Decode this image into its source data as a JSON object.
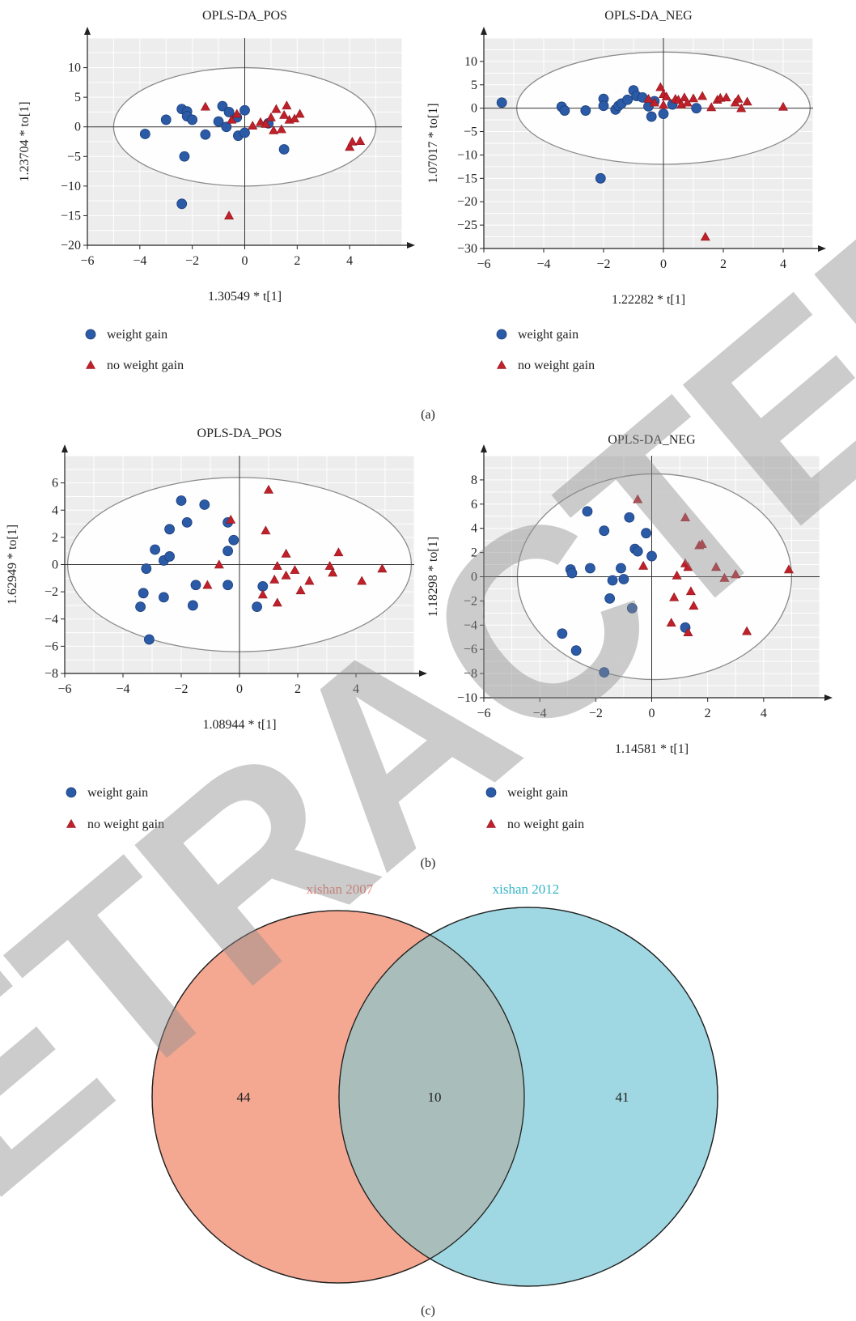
{
  "panel_labels": {
    "a": "(a)",
    "b": "(b)",
    "c": "(c)"
  },
  "watermark": "RETRACTED",
  "colors": {
    "weight_gain": "#2B5AA6",
    "no_weight_gain": "#C0202A",
    "plot_bg": "#ededed",
    "venn_left": "#F4A892",
    "venn_right": "#9FD8E2",
    "venn_overlap": "#A9BDBA",
    "venn_left_label": "#EE7A6C",
    "venn_right_label": "#33B5C6"
  },
  "chart_data": [
    {
      "type": "scatter",
      "title": "OPLS-DA_POS",
      "xlabel": "1.30549 * t[1]",
      "ylabel": "1.23704 * to[1]",
      "xlim": [
        -6,
        6
      ],
      "ylim": [
        -20,
        15
      ],
      "xticks": [
        -6,
        -4,
        -2,
        0,
        2,
        4
      ],
      "yticks": [
        -20,
        -15,
        -10,
        -5,
        0,
        5,
        10
      ],
      "grid": true,
      "legend": "below",
      "ellipse": {
        "cx": 0,
        "cy": 0,
        "rx": 5,
        "ry": 10
      },
      "series": [
        {
          "name": "weight gain",
          "marker": "circle",
          "points": [
            [
              -3.8,
              -1.2
            ],
            [
              -3,
              1.2
            ],
            [
              -2.4,
              3
            ],
            [
              -2.2,
              2.6
            ],
            [
              -2.2,
              1.8
            ],
            [
              -2,
              1.2
            ],
            [
              -2.3,
              -5
            ],
            [
              -2.4,
              -13
            ],
            [
              -1.5,
              -1.3
            ],
            [
              -1,
              0.9
            ],
            [
              -0.85,
              3.5
            ],
            [
              -0.7,
              0
            ],
            [
              -0.6,
              2.5
            ],
            [
              -0.3,
              1.6
            ],
            [
              -0.25,
              -1.5
            ],
            [
              0,
              -1
            ],
            [
              0,
              2.8
            ],
            [
              0.9,
              0.6
            ],
            [
              1.5,
              -3.8
            ]
          ]
        },
        {
          "name": "no weight gain",
          "marker": "triangle",
          "points": [
            [
              -1.5,
              3.4
            ],
            [
              -0.6,
              -15
            ],
            [
              -0.5,
              1.2
            ],
            [
              -0.3,
              2.2
            ],
            [
              0.3,
              0.2
            ],
            [
              0.6,
              0.8
            ],
            [
              0.8,
              0.5
            ],
            [
              1,
              1.6
            ],
            [
              1.1,
              -0.6
            ],
            [
              1.2,
              3
            ],
            [
              1.4,
              -0.4
            ],
            [
              1.5,
              2
            ],
            [
              1.6,
              3.6
            ],
            [
              1.7,
              1.2
            ],
            [
              1.9,
              1.4
            ],
            [
              2.1,
              2.2
            ],
            [
              4,
              -3.4
            ],
            [
              4.1,
              -2.5
            ],
            [
              4.4,
              -2.4
            ]
          ]
        }
      ]
    },
    {
      "type": "scatter",
      "title": "OPLS-DA_NEG",
      "xlabel": "1.22282 * t[1]",
      "ylabel": "1.07017 * to[1]",
      "xlim": [
        -6,
        5
      ],
      "ylim": [
        -30,
        15
      ],
      "xticks": [
        -6,
        -4,
        -2,
        0,
        2,
        4
      ],
      "yticks": [
        -30,
        -25,
        -20,
        -15,
        -10,
        -5,
        0,
        5,
        10
      ],
      "grid": true,
      "legend": "below",
      "ellipse": {
        "cx": 0,
        "cy": 0,
        "rx": 4.9,
        "ry": 12
      },
      "series": [
        {
          "name": "weight gain",
          "marker": "circle",
          "points": [
            [
              -5.4,
              1.2
            ],
            [
              -3.4,
              0.3
            ],
            [
              -3.3,
              -0.5
            ],
            [
              -2.6,
              -0.5
            ],
            [
              -2.1,
              -15
            ],
            [
              -2,
              2
            ],
            [
              -2,
              0.5
            ],
            [
              -1.6,
              -0.3
            ],
            [
              -1.5,
              0.5
            ],
            [
              -1.4,
              1
            ],
            [
              -1.2,
              1.8
            ],
            [
              -1,
              3.8
            ],
            [
              -0.9,
              2.6
            ],
            [
              -0.7,
              2.3
            ],
            [
              -0.5,
              0.4
            ],
            [
              -0.4,
              -1.8
            ],
            [
              -0.3,
              1.5
            ],
            [
              0,
              -1.2
            ],
            [
              0.3,
              0.8
            ],
            [
              1.1,
              0
            ]
          ]
        },
        {
          "name": "no weight gain",
          "marker": "triangle",
          "points": [
            [
              -0.5,
              2
            ],
            [
              -0.3,
              1.2
            ],
            [
              -0.1,
              4.5
            ],
            [
              0,
              3
            ],
            [
              0,
              0.7
            ],
            [
              0.1,
              2.5
            ],
            [
              0.4,
              2
            ],
            [
              0.5,
              1.8
            ],
            [
              0.6,
              0.8
            ],
            [
              0.7,
              2.3
            ],
            [
              0.8,
              1.2
            ],
            [
              1,
              2.1
            ],
            [
              1.3,
              2.6
            ],
            [
              1.4,
              -27.5
            ],
            [
              1.6,
              0.2
            ],
            [
              1.8,
              1.8
            ],
            [
              1.9,
              2.2
            ],
            [
              2.1,
              2.3
            ],
            [
              2.4,
              1.2
            ],
            [
              2.5,
              2
            ],
            [
              2.6,
              0
            ],
            [
              2.8,
              1.4
            ],
            [
              4,
              0.3
            ]
          ]
        }
      ]
    },
    {
      "type": "scatter",
      "title": "OPLS-DA_POS",
      "xlabel": "1.08944 * t[1]",
      "ylabel": "1.62949 * to[1]",
      "xlim": [
        -6,
        6
      ],
      "ylim": [
        -8,
        8
      ],
      "xticks": [
        -6,
        -4,
        -2,
        0,
        2,
        4
      ],
      "yticks": [
        -8,
        -6,
        -4,
        -2,
        0,
        2,
        4,
        6
      ],
      "grid": true,
      "legend": "below",
      "ellipse": {
        "cx": 0,
        "cy": 0,
        "rx": 5.9,
        "ry": 6.4
      },
      "series": [
        {
          "name": "weight gain",
          "marker": "circle",
          "points": [
            [
              -3.4,
              -3.1
            ],
            [
              -3.3,
              -2.1
            ],
            [
              -3.2,
              -0.3
            ],
            [
              -3.1,
              -5.5
            ],
            [
              -2.9,
              1.1
            ],
            [
              -2.6,
              0.3
            ],
            [
              -2.6,
              -2.4
            ],
            [
              -2.4,
              2.6
            ],
            [
              -2.4,
              0.6
            ],
            [
              -2,
              4.7
            ],
            [
              -1.8,
              3.1
            ],
            [
              -1.6,
              -3
            ],
            [
              -1.5,
              -1.5
            ],
            [
              -1.2,
              4.4
            ],
            [
              -0.4,
              -1.5
            ],
            [
              -0.4,
              1
            ],
            [
              -0.4,
              3.1
            ],
            [
              -0.2,
              1.8
            ],
            [
              0.6,
              -3.1
            ],
            [
              0.8,
              -1.6
            ]
          ]
        },
        {
          "name": "no weight gain",
          "marker": "triangle",
          "points": [
            [
              -1.1,
              -1.5
            ],
            [
              -0.7,
              0
            ],
            [
              -0.3,
              3.3
            ],
            [
              0.8,
              -2.2
            ],
            [
              0.9,
              2.5
            ],
            [
              1,
              5.5
            ],
            [
              1.2,
              -1.1
            ],
            [
              1.3,
              -0.1
            ],
            [
              1.3,
              -2.8
            ],
            [
              1.6,
              -0.8
            ],
            [
              1.6,
              0.8
            ],
            [
              1.9,
              -0.4
            ],
            [
              2.1,
              -1.9
            ],
            [
              2.4,
              -1.2
            ],
            [
              3.1,
              -0.1
            ],
            [
              3.2,
              -0.6
            ],
            [
              3.4,
              0.9
            ],
            [
              4.2,
              -1.2
            ],
            [
              4.9,
              -0.3
            ]
          ]
        }
      ]
    },
    {
      "type": "scatter",
      "title": "OPLS-DA_NEG",
      "xlabel": "1.14581 * t[1]",
      "ylabel": "1.18298 * to[1]",
      "xlim": [
        -6,
        6
      ],
      "ylim": [
        -10,
        10
      ],
      "xticks": [
        -6,
        -4,
        -2,
        0,
        2,
        4
      ],
      "yticks": [
        -10,
        -8,
        -6,
        -4,
        -2,
        0,
        2,
        4,
        6,
        8
      ],
      "grid": true,
      "legend": "below",
      "ellipse": {
        "cx": 0.1,
        "cy": 0,
        "rx": 4.9,
        "ry": 8.5
      },
      "series": [
        {
          "name": "weight gain",
          "marker": "circle",
          "points": [
            [
              -3.2,
              -4.7
            ],
            [
              -2.9,
              0.6
            ],
            [
              -2.85,
              0.3
            ],
            [
              -2.7,
              -6.1
            ],
            [
              -2.3,
              5.4
            ],
            [
              -2.2,
              0.7
            ],
            [
              -1.7,
              3.8
            ],
            [
              -1.7,
              -7.9
            ],
            [
              -1.5,
              -1.8
            ],
            [
              -1.4,
              -0.3
            ],
            [
              -1.1,
              0.7
            ],
            [
              -1,
              -0.2
            ],
            [
              -0.8,
              4.9
            ],
            [
              -0.7,
              -2.6
            ],
            [
              -0.6,
              2.3
            ],
            [
              -0.5,
              2.1
            ],
            [
              -0.2,
              3.6
            ],
            [
              0,
              1.7
            ],
            [
              1.2,
              -4.2
            ]
          ]
        },
        {
          "name": "no weight gain",
          "marker": "triangle",
          "points": [
            [
              -0.5,
              6.4
            ],
            [
              -0.3,
              0.9
            ],
            [
              0.7,
              -3.8
            ],
            [
              0.8,
              -1.7
            ],
            [
              0.9,
              0.1
            ],
            [
              1.2,
              4.9
            ],
            [
              1.2,
              1.1
            ],
            [
              1.3,
              -4.6
            ],
            [
              1.3,
              0.8
            ],
            [
              1.4,
              -1.2
            ],
            [
              1.5,
              -2.4
            ],
            [
              1.7,
              2.6
            ],
            [
              1.8,
              2.7
            ],
            [
              2.3,
              0.8
            ],
            [
              2.6,
              -0.1
            ],
            [
              3,
              0.2
            ],
            [
              3.4,
              -4.5
            ],
            [
              4.9,
              0.6
            ]
          ]
        }
      ]
    }
  ],
  "venn": {
    "left_label": "xishan 2007",
    "right_label": "xishan 2012",
    "left_only": "44",
    "overlap": "10",
    "right_only": "41"
  }
}
